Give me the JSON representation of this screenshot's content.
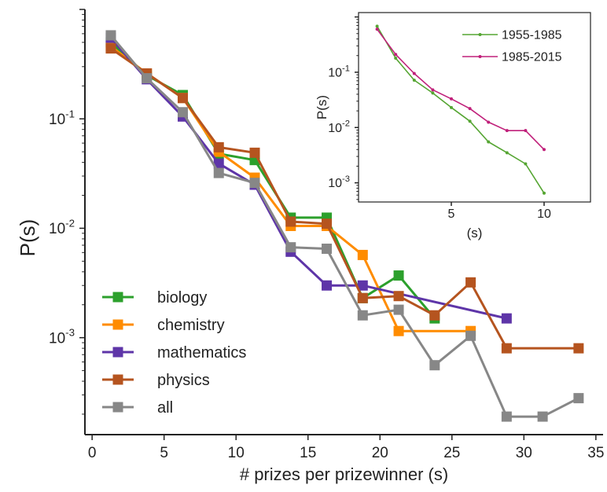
{
  "chart_data": [
    {
      "type": "line",
      "title": "",
      "xlabel": "# prizes per prizewinner (s)",
      "ylabel": "P(s)",
      "yscale": "log",
      "xlim": [
        -0.5,
        35.5
      ],
      "ylim": [
        0.00013,
        1.0
      ],
      "xticks": [
        {
          "v": 0,
          "label": "0"
        },
        {
          "v": 5,
          "label": "5"
        },
        {
          "v": 10,
          "label": "10"
        },
        {
          "v": 15,
          "label": "15"
        },
        {
          "v": 20,
          "label": "20"
        },
        {
          "v": 25,
          "label": "25"
        },
        {
          "v": 30,
          "label": "30"
        },
        {
          "v": 35,
          "label": "35"
        }
      ],
      "yticks": [
        {
          "v": 0.1,
          "base": "10",
          "exp": "-1"
        },
        {
          "v": 0.01,
          "base": "10",
          "exp": "-2"
        },
        {
          "v": 0.001,
          "base": "10",
          "exp": "-3"
        }
      ],
      "legend_placement": "lower-left",
      "series": [
        {
          "name": "biology",
          "color": "#2ca02c",
          "x": [
            1.3,
            3.8,
            6.3,
            8.8,
            11.3,
            13.8,
            16.3,
            18.8,
            21.3,
            23.8
          ],
          "y": [
            0.5,
            0.25,
            0.165,
            0.048,
            0.042,
            0.0125,
            0.0125,
            0.0023,
            0.0037,
            0.0015
          ]
        },
        {
          "name": "chemistry",
          "color": "#ff8c00",
          "x": [
            1.3,
            3.8,
            6.3,
            8.8,
            11.3,
            13.8,
            16.3,
            18.8,
            21.3,
            26.3
          ],
          "y": [
            0.46,
            0.26,
            0.155,
            0.05,
            0.029,
            0.0105,
            0.0105,
            0.0057,
            0.00115,
            0.00115
          ]
        },
        {
          "name": "mathematics",
          "color": "#5e35a8",
          "x": [
            1.3,
            3.8,
            6.3,
            8.8,
            11.3,
            13.8,
            16.3,
            18.8,
            28.8
          ],
          "y": [
            0.55,
            0.23,
            0.105,
            0.039,
            0.025,
            0.0061,
            0.003,
            0.003,
            0.0015
          ]
        },
        {
          "name": "physics",
          "color": "#b5541f",
          "x": [
            1.3,
            3.8,
            6.3,
            8.8,
            11.3,
            13.8,
            16.3,
            18.8,
            21.3,
            23.8,
            26.3,
            28.8,
            33.8
          ],
          "y": [
            0.44,
            0.26,
            0.155,
            0.055,
            0.049,
            0.0115,
            0.011,
            0.0023,
            0.0024,
            0.0016,
            0.0032,
            0.0008,
            0.0008
          ]
        },
        {
          "name": "all",
          "color": "#878787",
          "x": [
            1.3,
            3.8,
            6.3,
            8.8,
            11.3,
            13.8,
            16.3,
            18.8,
            21.3,
            23.8,
            26.3,
            28.8,
            31.3,
            33.8
          ],
          "y": [
            0.58,
            0.235,
            0.115,
            0.032,
            0.026,
            0.0067,
            0.0065,
            0.0016,
            0.0018,
            0.00056,
            0.00104,
            0.00019,
            0.00019,
            0.00028
          ]
        }
      ]
    },
    {
      "type": "line",
      "title": "",
      "xlabel": "(s)",
      "ylabel": "P(s)",
      "yscale": "log",
      "xlim": [
        0,
        12.5
      ],
      "ylim": [
        0.00045,
        1.2
      ],
      "xticks": [
        {
          "v": 5,
          "label": "5"
        },
        {
          "v": 10,
          "label": "10"
        }
      ],
      "yticks": [
        {
          "v": 0.1,
          "base": "10",
          "exp": "-1"
        },
        {
          "v": 0.01,
          "base": "10",
          "exp": "-2"
        },
        {
          "v": 0.001,
          "base": "10",
          "exp": "-3"
        }
      ],
      "legend_placement": "top-right",
      "series": [
        {
          "name": "1955-1985",
          "color": "#55a532",
          "x": [
            1,
            2,
            3,
            4,
            5,
            6,
            7,
            8,
            9,
            10
          ],
          "y": [
            0.68,
            0.18,
            0.072,
            0.042,
            0.023,
            0.013,
            0.0055,
            0.0035,
            0.0022,
            0.00065
          ]
        },
        {
          "name": "1985-2015",
          "color": "#c0207a",
          "x": [
            1,
            2,
            3,
            4,
            5,
            6,
            7,
            8,
            9,
            10
          ],
          "y": [
            0.6,
            0.21,
            0.095,
            0.048,
            0.033,
            0.022,
            0.0125,
            0.0088,
            0.0088,
            0.004
          ]
        }
      ]
    }
  ]
}
